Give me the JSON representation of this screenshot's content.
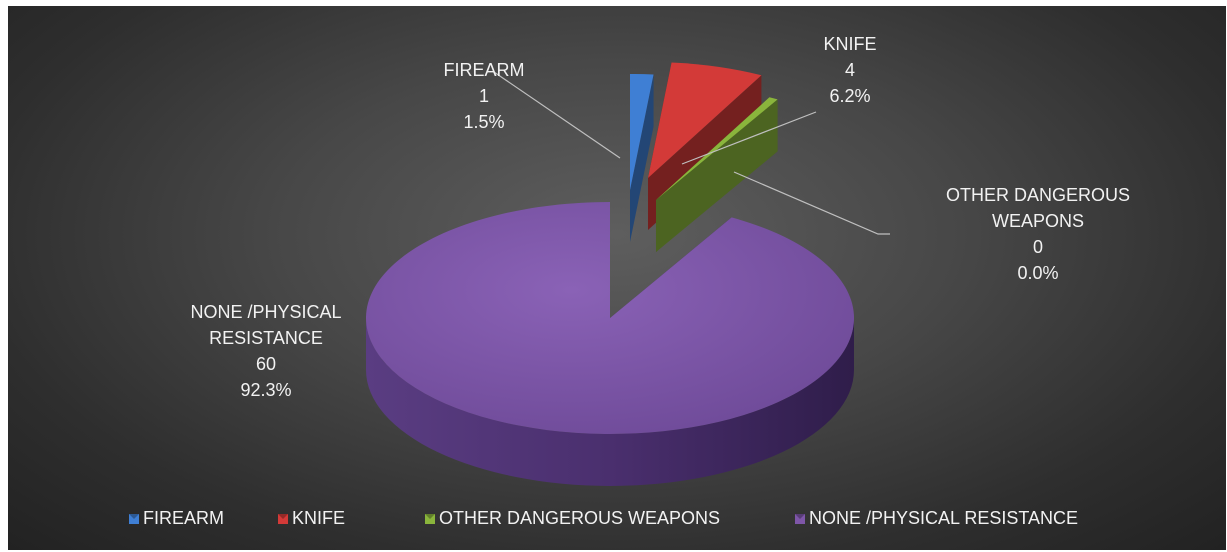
{
  "chart_data": {
    "type": "pie",
    "style": "3d-exploded",
    "legend_position": "bottom",
    "slices": [
      {
        "label_lines": [
          "FIREARM"
        ],
        "value": 1,
        "percent": "1.5%",
        "color": "#3f7fd4"
      },
      {
        "label_lines": [
          "KNIFE"
        ],
        "value": 4,
        "percent": "6.2%",
        "color": "#d33a38"
      },
      {
        "label_lines": [
          "OTHER DANGEROUS",
          "WEAPONS"
        ],
        "value": 0,
        "percent": "0.0%",
        "color": "#8ab53c"
      },
      {
        "label_lines": [
          "NONE /PHYSICAL",
          "RESISTANCE"
        ],
        "value": 60,
        "percent": "92.3%",
        "color": "#7e56a8"
      }
    ],
    "legend": [
      {
        "label": "FIREARM",
        "color": "#3f7fd4"
      },
      {
        "label": "KNIFE",
        "color": "#d33a38"
      },
      {
        "label": "OTHER DANGEROUS WEAPONS",
        "color": "#8ab53c"
      },
      {
        "label": "NONE /PHYSICAL RESISTANCE",
        "color": "#7e56a8"
      }
    ]
  }
}
